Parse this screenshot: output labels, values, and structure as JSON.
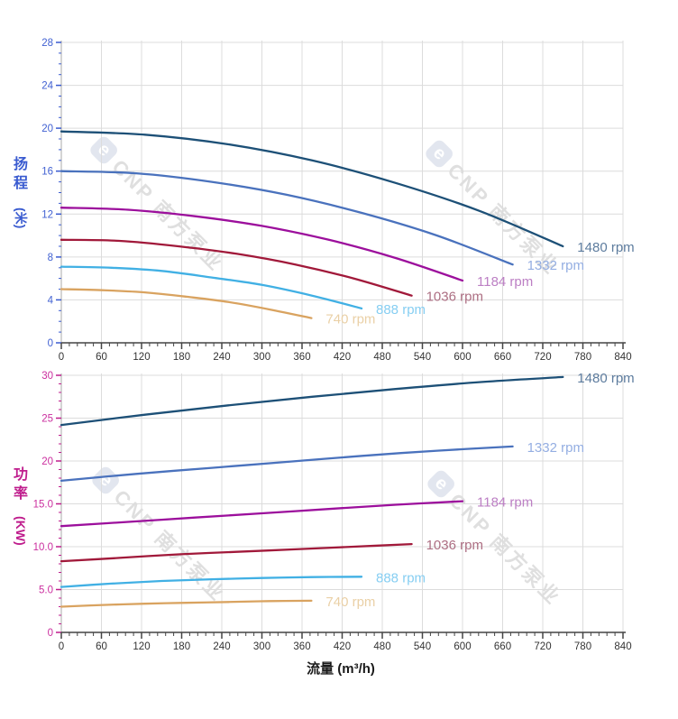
{
  "page": {
    "background": "#ffffff",
    "grid_color": "#dcdcdc",
    "x_axis_line_color": "#444444"
  },
  "x_axis_title": "流量 (m³/h)",
  "watermark": {
    "logo": "e",
    "text": "CNP 南方泵业"
  },
  "chart_data": [
    {
      "id": "head",
      "type": "line",
      "y_title": "扬程",
      "y_unit": "(米)",
      "axis_color": "#3a5bd0",
      "tick_label_color": "#4161d2",
      "x": {
        "min": 0,
        "max": 840,
        "major_step": 60,
        "minor_step": 12,
        "tick_labels": [
          "0",
          "60",
          "120",
          "180",
          "240",
          "300",
          "360",
          "420",
          "480",
          "540",
          "600",
          "660",
          "720",
          "780",
          "840"
        ]
      },
      "y": {
        "min": 0,
        "max": 28,
        "major_step": 4,
        "minor_step": 1,
        "tick_labels": [
          "0",
          "4",
          "8",
          "12",
          "16",
          "20",
          "24",
          "28"
        ]
      },
      "series": [
        {
          "name": "1480 rpm",
          "color": "#1d5077",
          "label_color": "#5d7c9e",
          "points": [
            [
              0,
              19.7
            ],
            [
              125,
              19.4
            ],
            [
              250,
              18.5
            ],
            [
              375,
              17.0
            ],
            [
              500,
              14.9
            ],
            [
              625,
              12.3
            ],
            [
              750,
              9.0
            ]
          ]
        },
        {
          "name": "1332 rpm",
          "color": "#4a72bd",
          "label_color": "#94aee2",
          "points": [
            [
              0,
              16.0
            ],
            [
              112,
              15.8
            ],
            [
              225,
              15.0
            ],
            [
              337,
              13.8
            ],
            [
              450,
              12.1
            ],
            [
              562,
              10.0
            ],
            [
              675,
              7.3
            ]
          ]
        },
        {
          "name": "1184 rpm",
          "color": "#9c0f9c",
          "label_color": "#bc7fc4",
          "points": [
            [
              0,
              12.6
            ],
            [
              100,
              12.4
            ],
            [
              200,
              11.8
            ],
            [
              300,
              10.9
            ],
            [
              400,
              9.6
            ],
            [
              500,
              7.9
            ],
            [
              600,
              5.8
            ]
          ]
        },
        {
          "name": "1036 rpm",
          "color": "#a1193a",
          "label_color": "#ad6f83",
          "points": [
            [
              0,
              9.6
            ],
            [
              87,
              9.5
            ],
            [
              175,
              9.0
            ],
            [
              262,
              8.3
            ],
            [
              350,
              7.3
            ],
            [
              437,
              6.0
            ],
            [
              524,
              4.4
            ]
          ]
        },
        {
          "name": "888 rpm",
          "color": "#41b0e4",
          "label_color": "#86cef2",
          "points": [
            [
              0,
              7.1
            ],
            [
              75,
              7.0
            ],
            [
              150,
              6.7
            ],
            [
              224,
              6.1
            ],
            [
              300,
              5.4
            ],
            [
              375,
              4.4
            ],
            [
              449,
              3.2
            ]
          ]
        },
        {
          "name": "740 rpm",
          "color": "#d9a360",
          "label_color": "#ead0a6",
          "points": [
            [
              0,
              5.0
            ],
            [
              62,
              4.9
            ],
            [
              125,
              4.7
            ],
            [
              187,
              4.3
            ],
            [
              250,
              3.8
            ],
            [
              312,
              3.1
            ],
            [
              374,
              2.3
            ]
          ]
        }
      ]
    },
    {
      "id": "power",
      "type": "line",
      "y_title": "功率",
      "y_unit": "(KW)",
      "axis_color": "#bf1d8d",
      "tick_label_color": "#cb2f9f",
      "x": {
        "min": 0,
        "max": 840,
        "major_step": 60,
        "minor_step": 12,
        "tick_labels": [
          "0",
          "60",
          "120",
          "180",
          "240",
          "300",
          "360",
          "420",
          "480",
          "540",
          "600",
          "660",
          "720",
          "780",
          "840"
        ]
      },
      "y": {
        "min": 0,
        "max": 30,
        "major_step": 5,
        "minor_step": 1,
        "tick_labels": [
          "0",
          "5.0",
          "10.0",
          "15.0",
          "20",
          "25",
          "30"
        ]
      },
      "series": [
        {
          "name": "1480 rpm",
          "color": "#1d5077",
          "label_color": "#5d7c9e",
          "points": [
            [
              0,
              24.2
            ],
            [
              125,
              25.4
            ],
            [
              250,
              26.5
            ],
            [
              375,
              27.5
            ],
            [
              500,
              28.4
            ],
            [
              625,
              29.2
            ],
            [
              750,
              29.8
            ]
          ]
        },
        {
          "name": "1332 rpm",
          "color": "#4a72bd",
          "label_color": "#94aee2",
          "points": [
            [
              0,
              17.7
            ],
            [
              112,
              18.5
            ],
            [
              225,
              19.2
            ],
            [
              337,
              19.9
            ],
            [
              450,
              20.6
            ],
            [
              562,
              21.2
            ],
            [
              675,
              21.7
            ]
          ]
        },
        {
          "name": "1184 rpm",
          "color": "#9c0f9c",
          "label_color": "#bc7fc4",
          "points": [
            [
              0,
              12.4
            ],
            [
              100,
              12.9
            ],
            [
              200,
              13.4
            ],
            [
              300,
              13.9
            ],
            [
              400,
              14.4
            ],
            [
              500,
              14.9
            ],
            [
              600,
              15.3
            ]
          ]
        },
        {
          "name": "1036 rpm",
          "color": "#a1193a",
          "label_color": "#ad6f83",
          "points": [
            [
              0,
              8.3
            ],
            [
              87,
              8.7
            ],
            [
              175,
              9.1
            ],
            [
              262,
              9.4
            ],
            [
              350,
              9.7
            ],
            [
              437,
              10.0
            ],
            [
              524,
              10.3
            ]
          ]
        },
        {
          "name": "888 rpm",
          "color": "#41b0e4",
          "label_color": "#86cef2",
          "points": [
            [
              0,
              5.3
            ],
            [
              75,
              5.7
            ],
            [
              150,
              6.0
            ],
            [
              225,
              6.2
            ],
            [
              300,
              6.35
            ],
            [
              375,
              6.45
            ],
            [
              449,
              6.5
            ]
          ]
        },
        {
          "name": "740 rpm",
          "color": "#d9a360",
          "label_color": "#ead0a6",
          "points": [
            [
              0,
              3.0
            ],
            [
              62,
              3.2
            ],
            [
              125,
              3.35
            ],
            [
              187,
              3.45
            ],
            [
              250,
              3.55
            ],
            [
              312,
              3.65
            ],
            [
              374,
              3.7
            ]
          ]
        }
      ]
    }
  ]
}
